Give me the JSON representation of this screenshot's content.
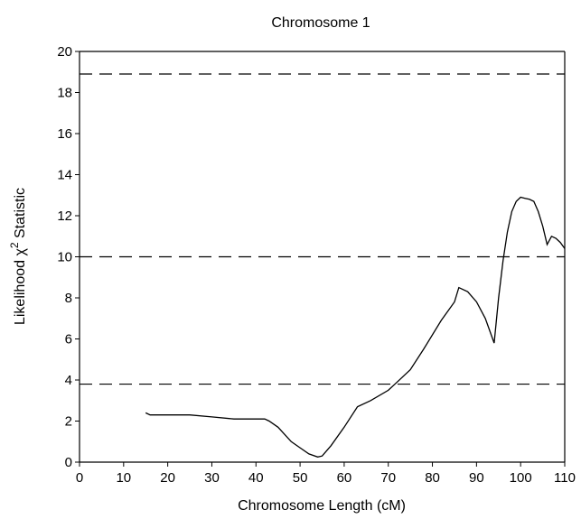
{
  "chart_data": {
    "type": "line",
    "title": "Chromosome 1",
    "xlabel": "Chromosome Length (cM)",
    "ylabel_prefix": "Likelihood ",
    "ylabel_symbol": "χ",
    "ylabel_sup": "2",
    "ylabel_suffix": " Statistic",
    "xlim": [
      0,
      110
    ],
    "ylim": [
      0,
      20
    ],
    "x_ticks": [
      0,
      10,
      20,
      30,
      40,
      50,
      60,
      70,
      80,
      90,
      100,
      110
    ],
    "y_ticks": [
      0,
      2,
      4,
      6,
      8,
      10,
      12,
      14,
      16,
      18,
      20
    ],
    "grid": false,
    "legend": "none",
    "thresholds": [
      18.9,
      10.0,
      3.8
    ],
    "series": [
      {
        "x": [
          15,
          16,
          20,
          25,
          30,
          35,
          40,
          42,
          43,
          45,
          48,
          50,
          52,
          54,
          55,
          57,
          60,
          63,
          66,
          70,
          72,
          75,
          78,
          82,
          85,
          86,
          88,
          90,
          92,
          94,
          95,
          96,
          97,
          98,
          99,
          100,
          101,
          102,
          103,
          104,
          105,
          106,
          107,
          108,
          109,
          110
        ],
        "y": [
          2.4,
          2.3,
          2.3,
          2.3,
          2.2,
          2.1,
          2.1,
          2.1,
          2.0,
          1.7,
          1.0,
          0.7,
          0.4,
          0.25,
          0.3,
          0.8,
          1.7,
          2.7,
          3.0,
          3.5,
          3.9,
          4.5,
          5.5,
          6.9,
          7.8,
          8.5,
          8.3,
          7.8,
          7.0,
          5.8,
          8.0,
          9.8,
          11.2,
          12.2,
          12.7,
          12.9,
          12.85,
          12.8,
          12.7,
          12.2,
          11.5,
          10.6,
          11.0,
          10.9,
          10.7,
          10.4
        ]
      }
    ]
  }
}
